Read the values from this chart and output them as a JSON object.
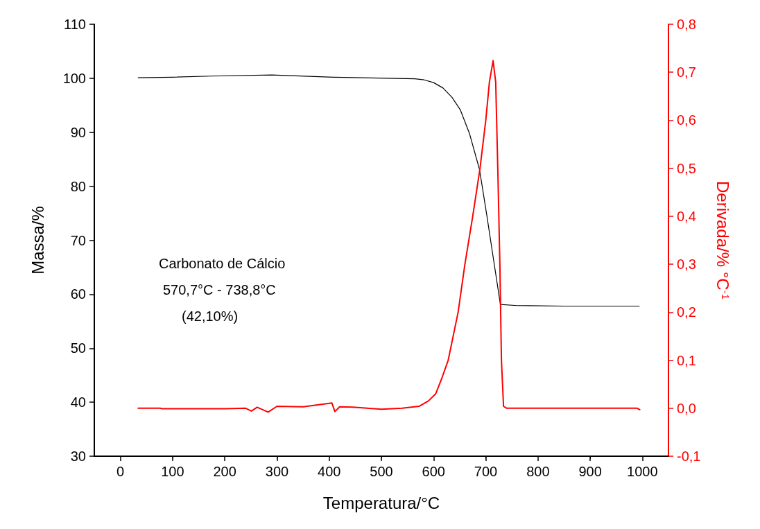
{
  "chart_data": {
    "type": "line",
    "xlabel": "Temperatura/°C",
    "ylabel": "Massa/%",
    "y2label": "Derivada/% °C$^{-1}$",
    "xlim": [
      -50,
      1050
    ],
    "xticks": [
      0,
      100,
      200,
      300,
      400,
      500,
      600,
      700,
      800,
      900,
      1000
    ],
    "ylim": [
      30,
      110
    ],
    "yticks": [
      30,
      40,
      50,
      60,
      70,
      80,
      90,
      100,
      110
    ],
    "y2lim": [
      -0.1,
      0.8
    ],
    "y2ticks": [
      {
        "value": -0.1,
        "label": "-0,1"
      },
      {
        "value": 0,
        "label": "0,0"
      },
      {
        "value": 0.1,
        "label": "0,1"
      },
      {
        "value": 0.2,
        "label": "0,2"
      },
      {
        "value": 0.3,
        "label": "0,3"
      },
      {
        "value": 0.4,
        "label": "0,4"
      },
      {
        "value": 0.5,
        "label": "0,5"
      },
      {
        "value": 0.6,
        "label": "0,6"
      },
      {
        "value": 0.7,
        "label": "0,7"
      },
      {
        "value": 0.8,
        "label": "0,8"
      }
    ],
    "grid": false,
    "marker": "none",
    "line_style": "solid",
    "annotations": [
      "Carbonato de Cálcio",
      "570,7°C - 738,8°C",
      "(42,10%)"
    ],
    "series": [
      {
        "color": "#000000",
        "x": [
          34,
          100,
          173,
          290,
          408,
          512,
          564,
          582,
          600,
          618,
          635,
          651,
          669,
          688,
          702,
          716,
          728,
          760,
          850,
          994
        ],
        "values": [
          100.1,
          100.2,
          100.4,
          100.6,
          100.2,
          100.0,
          99.9,
          99.7,
          99.2,
          98.2,
          96.5,
          94.2,
          89.7,
          83.1,
          74.6,
          65.7,
          58.1,
          57.9,
          57.8,
          57.8
        ]
      },
      {
        "color": "#ff0000",
        "axis": "y2",
        "x": [
          34,
          76,
          80,
          200,
          240,
          251,
          262,
          283,
          300,
          350,
          405,
          411,
          420,
          450,
          500,
          540,
          572,
          590,
          604,
          615,
          628,
          647,
          660,
          675,
          689,
          700,
          707,
          714,
          719,
          723,
          727,
          730,
          734,
          740,
          800,
          900,
          990,
          995
        ],
        "values": [
          0.0,
          0.0,
          -0.001,
          -0.001,
          0.0,
          -0.006,
          0.002,
          -0.008,
          0.004,
          0.003,
          0.011,
          -0.007,
          0.003,
          0.002,
          -0.002,
          0.0,
          0.004,
          0.015,
          0.03,
          0.06,
          0.1,
          0.2,
          0.3,
          0.4,
          0.5,
          0.6,
          0.68,
          0.724,
          0.68,
          0.5,
          0.3,
          0.1,
          0.004,
          0.0,
          0.0,
          0.0,
          0.0,
          -0.003
        ]
      }
    ]
  }
}
